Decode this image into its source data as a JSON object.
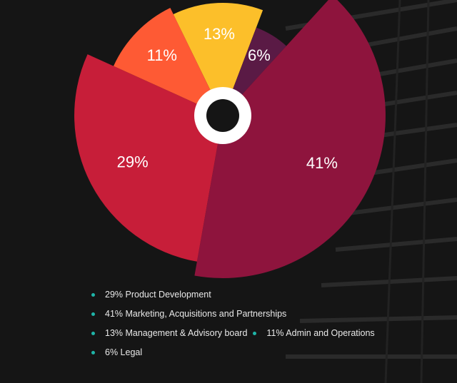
{
  "chart_data": {
    "type": "pie",
    "title": "",
    "slices": [
      {
        "label": "13%",
        "value": 13,
        "color": "#fcbf2a",
        "name": "Management & Advisory board"
      },
      {
        "label": "6%",
        "value": 6,
        "color": "#5a1a45",
        "name": "Legal"
      },
      {
        "label": "41%",
        "value": 41,
        "color": "#8e143d",
        "name": "Marketing, Acquisitions and Partnerships"
      },
      {
        "label": "29%",
        "value": 29,
        "color": "#c71e39",
        "name": "Product Development"
      },
      {
        "label": "11%",
        "value": 11,
        "color": "#fe5a34",
        "name": "Admin and Operations"
      }
    ],
    "start_angle_deg": -26,
    "center_hole_color": "#151515",
    "center_ring_color": "#ffffff"
  },
  "legend": {
    "rows": [
      [
        "29% Product Development"
      ],
      [
        "41% Marketing, Acquisitions and Partnerships"
      ],
      [
        "13% Management & Advisory board",
        "11% Admin and Operations"
      ],
      [
        "6% Legal"
      ]
    ],
    "bullet_color": "#1fb5a8"
  }
}
